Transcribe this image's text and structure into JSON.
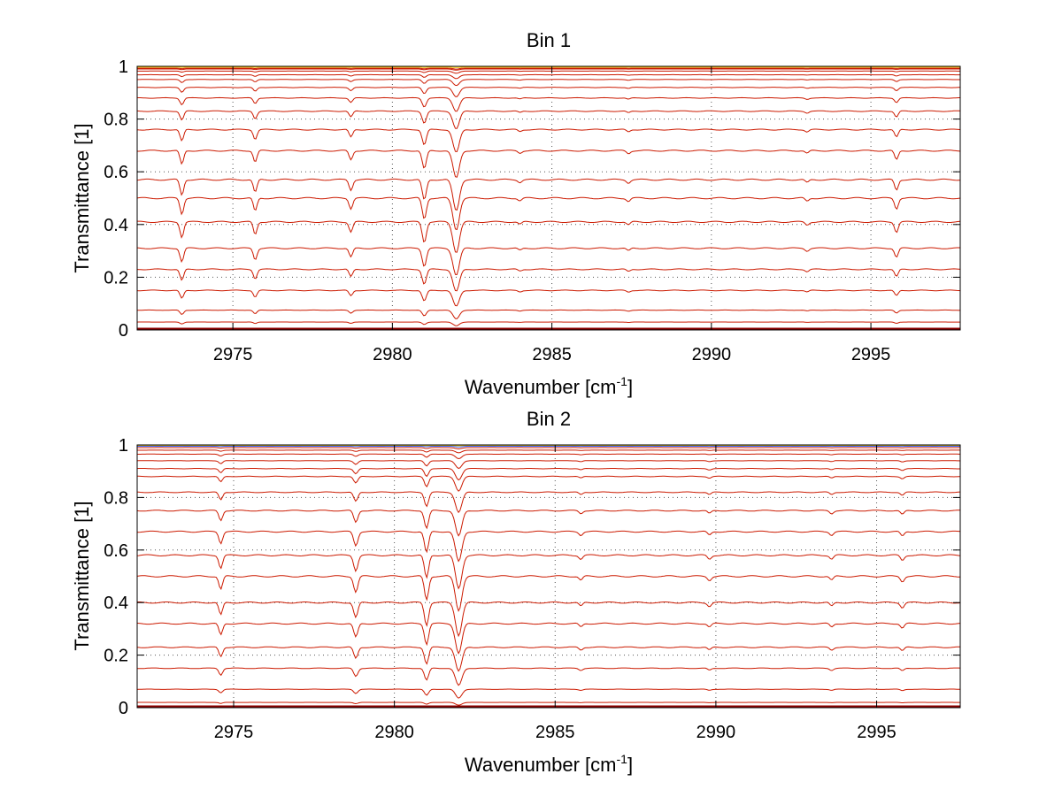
{
  "colors": {
    "background": "#ffffff",
    "axes": "#000000",
    "grid": "#555555",
    "trace_main": "#cc1a00",
    "trace_near_one": [
      "#ff8800",
      "#ffcc00",
      "#3366ff",
      "#ff3300"
    ],
    "bottom_trace": "#8b0000"
  },
  "chart_data": [
    {
      "type": "line",
      "title": "Bin 1",
      "xlabel": "Wavenumber [cm",
      "xlabel_sup": "-1",
      "xlabel_close": "]",
      "ylabel": "Transmittance [1]",
      "xlim": [
        2972.0,
        2997.8
      ],
      "ylim": [
        0,
        1
      ],
      "xticks": [
        2975,
        2980,
        2985,
        2990,
        2995
      ],
      "xtick_labels": [
        "2975",
        "2980",
        "2985",
        "2990",
        "2995"
      ],
      "yticks": [
        0,
        0.2,
        0.4,
        0.6,
        0.8,
        1
      ],
      "ytick_labels": [
        "0",
        "0.2",
        "0.4",
        "0.6",
        "0.8",
        "1"
      ],
      "grid": true,
      "legend": "none",
      "baselines": [
        1.0,
        0.997,
        0.993,
        0.99,
        0.982,
        0.968,
        0.95,
        0.92,
        0.88,
        0.83,
        0.76,
        0.68,
        0.57,
        0.5,
        0.41,
        0.31,
        0.23,
        0.15,
        0.075,
        0.03,
        0.0
      ],
      "absorption_lines": [
        {
          "x": 2973.4,
          "depth": 0.06,
          "width": 0.08
        },
        {
          "x": 2975.7,
          "depth": 0.05,
          "width": 0.08
        },
        {
          "x": 2978.7,
          "depth": 0.04,
          "width": 0.08
        },
        {
          "x": 2981.0,
          "depth": 0.08,
          "width": 0.09
        },
        {
          "x": 2982.0,
          "depth": 0.12,
          "width": 0.14
        },
        {
          "x": 2984.0,
          "depth": 0.01,
          "width": 0.08
        },
        {
          "x": 2987.4,
          "depth": 0.012,
          "width": 0.08
        },
        {
          "x": 2993.0,
          "depth": 0.012,
          "width": 0.08
        },
        {
          "x": 2995.8,
          "depth": 0.04,
          "width": 0.08
        }
      ]
    },
    {
      "type": "line",
      "title": "Bin 2",
      "xlabel": "Wavenumber [cm",
      "xlabel_sup": "-1",
      "xlabel_close": "]",
      "ylabel": "Transmittance [1]",
      "xlim": [
        2972.0,
        2997.6
      ],
      "ylim": [
        0,
        1
      ],
      "xticks": [
        2975,
        2980,
        2985,
        2990,
        2995
      ],
      "xtick_labels": [
        "2975",
        "2980",
        "2985",
        "2990",
        "2995"
      ],
      "yticks": [
        0,
        0.2,
        0.4,
        0.6,
        0.8,
        1
      ],
      "ytick_labels": [
        "0",
        "0.2",
        "0.4",
        "0.6",
        "0.8",
        "1"
      ],
      "grid": true,
      "legend": "none",
      "baselines": [
        1.0,
        0.998,
        0.995,
        0.99,
        0.98,
        0.965,
        0.94,
        0.91,
        0.88,
        0.82,
        0.75,
        0.67,
        0.58,
        0.5,
        0.4,
        0.32,
        0.23,
        0.15,
        0.07,
        0.02,
        0.0
      ],
      "absorption_lines": [
        {
          "x": 2974.6,
          "depth": 0.05,
          "width": 0.08
        },
        {
          "x": 2978.8,
          "depth": 0.06,
          "width": 0.09
        },
        {
          "x": 2981.0,
          "depth": 0.09,
          "width": 0.09
        },
        {
          "x": 2982.0,
          "depth": 0.13,
          "width": 0.14
        },
        {
          "x": 2985.8,
          "depth": 0.015,
          "width": 0.08
        },
        {
          "x": 2989.8,
          "depth": 0.015,
          "width": 0.08
        },
        {
          "x": 2993.6,
          "depth": 0.015,
          "width": 0.08
        },
        {
          "x": 2995.8,
          "depth": 0.02,
          "width": 0.08
        }
      ]
    }
  ]
}
